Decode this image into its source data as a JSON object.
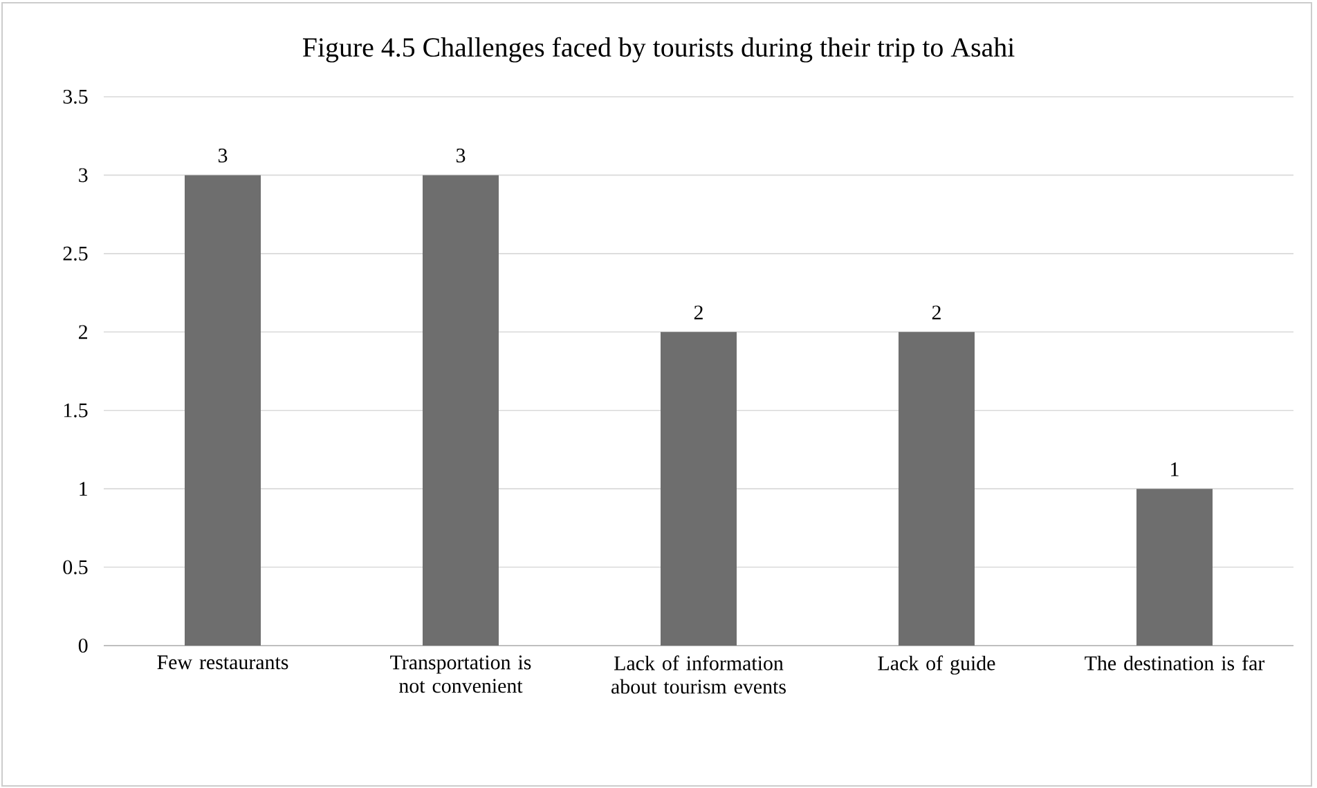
{
  "chart_data": {
    "type": "bar",
    "title": "Figure 4.5 Challenges faced by tourists during their trip to Asahi",
    "categories": [
      "Few restaurants",
      "Transportation is not convenient",
      "Lack of information about tourism events",
      "Lack of guide",
      "The destination is far"
    ],
    "values": [
      3,
      3,
      2,
      2,
      1
    ],
    "color": "#6e6e6e",
    "ylim": [
      0,
      3.5
    ],
    "yticks": [
      0,
      0.5,
      1,
      1.5,
      2,
      2.5,
      3,
      3.5
    ],
    "grid": "y",
    "data_labels": true
  }
}
